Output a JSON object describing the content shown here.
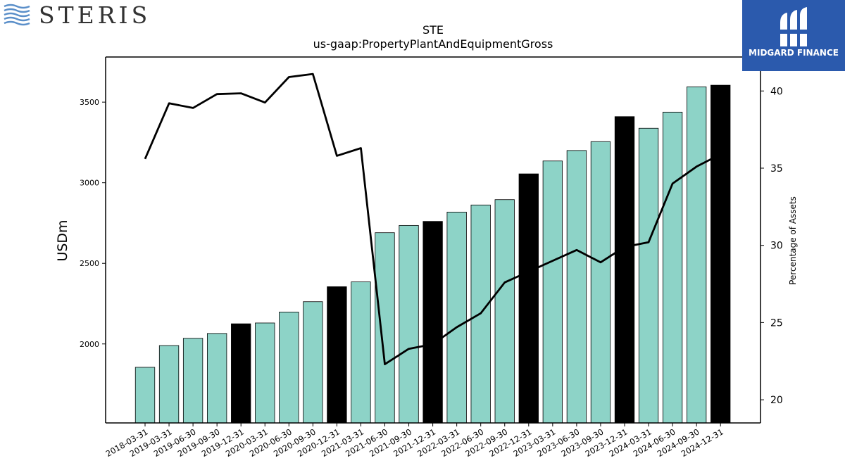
{
  "logos": {
    "left_brand": "STERIS",
    "right_brand": "MIDGARD FINANCE"
  },
  "chart_data": {
    "type": "bar",
    "title": "STE",
    "subtitle": "us-gaap:PropertyPlantAndEquipmentGross",
    "ylabel": "USDm",
    "y2label": "Percentage of Assets",
    "ylim": [
      1510,
      3780
    ],
    "y2lim": [
      18.5,
      42.2
    ],
    "yticks": [
      2000,
      2500,
      3000,
      3500
    ],
    "y2ticks": [
      20,
      25,
      30,
      35,
      40
    ],
    "categories": [
      "2018-03-31",
      "2019-03-31",
      "2019-06-30",
      "2019-09-30",
      "2019-12-31",
      "2020-03-31",
      "2020-06-30",
      "2020-09-30",
      "2020-12-31",
      "2021-03-31",
      "2021-06-30",
      "2021-09-30",
      "2021-12-31",
      "2022-03-31",
      "2022-06-30",
      "2022-09-30",
      "2022-12-31",
      "2023-03-31",
      "2023-06-30",
      "2023-09-30",
      "2023-12-31",
      "2024-03-31",
      "2024-06-30",
      "2024-09-30",
      "2024-12-31"
    ],
    "series": [
      {
        "type": "bar",
        "axis": "left",
        "values": [
          1855,
          1990,
          2035,
          2065,
          2125,
          2130,
          2198,
          2262,
          2355,
          2385,
          2690,
          2735,
          2760,
          2818,
          2862,
          2895,
          3055,
          3135,
          3200,
          3255,
          3410,
          3338,
          3438,
          3595,
          3605
        ],
        "highlight": [
          false,
          false,
          false,
          false,
          true,
          false,
          false,
          false,
          true,
          false,
          false,
          false,
          true,
          false,
          false,
          false,
          true,
          false,
          false,
          false,
          true,
          false,
          false,
          false,
          true
        ]
      },
      {
        "type": "line",
        "axis": "right",
        "values": [
          35.6,
          39.2,
          38.9,
          39.8,
          39.85,
          39.25,
          40.9,
          41.1,
          35.8,
          36.3,
          22.3,
          23.3,
          23.6,
          24.7,
          25.6,
          27.6,
          28.3,
          29.0,
          29.7,
          28.9,
          29.9,
          30.2,
          34.0,
          35.1,
          35.9
        ]
      }
    ],
    "colors": {
      "bar": "#8dd3c7",
      "highlight_bar": "#000000",
      "line": "#000000"
    },
    "grid": false
  }
}
